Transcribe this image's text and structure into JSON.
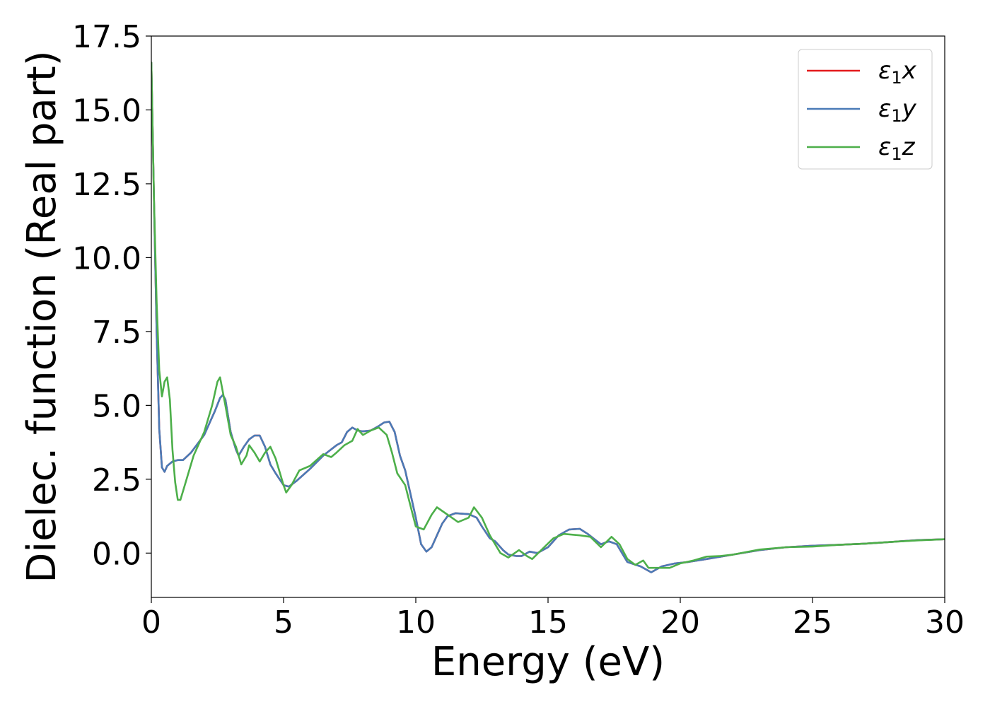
{
  "chart_data": {
    "type": "line",
    "xlabel": "Energy (eV)",
    "ylabel": "Dielec. function (Real part)",
    "xlim": [
      0,
      30
    ],
    "ylim": [
      -1.5,
      17.5
    ],
    "x_ticks": [
      "0",
      "5",
      "10",
      "15",
      "20",
      "25",
      "30"
    ],
    "y_ticks": [
      "0.0",
      "2.5",
      "5.0",
      "7.5",
      "10.0",
      "12.5",
      "15.0",
      "17.5"
    ],
    "x_tick_values": [
      0,
      5,
      10,
      15,
      20,
      25,
      30
    ],
    "y_tick_values": [
      0,
      2.5,
      5,
      7.5,
      10,
      12.5,
      15,
      17.5
    ],
    "grid": false,
    "legend_position": "top-right",
    "series": [
      {
        "name": "ε₁x",
        "legend_base": "ε",
        "legend_sub": "1",
        "legend_var": "x",
        "color": "#e41a1c",
        "points": [
          [
            0,
            16.6
          ],
          [
            0.1,
            12
          ],
          [
            0.2,
            7.5
          ],
          [
            0.3,
            4.2
          ],
          [
            0.4,
            2.9
          ],
          [
            0.5,
            2.75
          ],
          [
            0.6,
            2.95
          ],
          [
            0.8,
            3.1
          ],
          [
            1.0,
            3.15
          ],
          [
            1.2,
            3.15
          ],
          [
            1.5,
            3.4
          ],
          [
            2.0,
            4.0
          ],
          [
            2.2,
            4.4
          ],
          [
            2.4,
            4.8
          ],
          [
            2.6,
            5.25
          ],
          [
            2.7,
            5.35
          ],
          [
            2.8,
            5.2
          ],
          [
            3.0,
            4.1
          ],
          [
            3.2,
            3.5
          ],
          [
            3.3,
            3.3
          ],
          [
            3.5,
            3.6
          ],
          [
            3.7,
            3.85
          ],
          [
            3.9,
            3.98
          ],
          [
            4.1,
            3.98
          ],
          [
            4.3,
            3.6
          ],
          [
            4.5,
            3.0
          ],
          [
            4.7,
            2.7
          ],
          [
            5.0,
            2.3
          ],
          [
            5.2,
            2.25
          ],
          [
            5.5,
            2.45
          ],
          [
            6.0,
            2.85
          ],
          [
            6.5,
            3.3
          ],
          [
            7.0,
            3.65
          ],
          [
            7.2,
            3.75
          ],
          [
            7.4,
            4.1
          ],
          [
            7.6,
            4.25
          ],
          [
            7.8,
            4.15
          ],
          [
            8.0,
            4.12
          ],
          [
            8.3,
            4.15
          ],
          [
            8.6,
            4.3
          ],
          [
            8.8,
            4.42
          ],
          [
            9.0,
            4.45
          ],
          [
            9.2,
            4.1
          ],
          [
            9.4,
            3.3
          ],
          [
            9.6,
            2.8
          ],
          [
            9.8,
            2.0
          ],
          [
            10.0,
            1.2
          ],
          [
            10.2,
            0.3
          ],
          [
            10.4,
            0.05
          ],
          [
            10.6,
            0.2
          ],
          [
            10.8,
            0.6
          ],
          [
            11.0,
            1.0
          ],
          [
            11.2,
            1.25
          ],
          [
            11.5,
            1.35
          ],
          [
            12.0,
            1.32
          ],
          [
            12.3,
            1.2
          ],
          [
            12.5,
            0.9
          ],
          [
            12.8,
            0.5
          ],
          [
            13.0,
            0.4
          ],
          [
            13.3,
            0.1
          ],
          [
            13.5,
            -0.05
          ],
          [
            13.8,
            -0.1
          ],
          [
            14.0,
            -0.1
          ],
          [
            14.3,
            0.05
          ],
          [
            14.6,
            0.0
          ],
          [
            15.0,
            0.2
          ],
          [
            15.4,
            0.6
          ],
          [
            15.8,
            0.8
          ],
          [
            16.2,
            0.82
          ],
          [
            16.5,
            0.65
          ],
          [
            17.0,
            0.3
          ],
          [
            17.3,
            0.4
          ],
          [
            17.6,
            0.3
          ],
          [
            18.0,
            -0.3
          ],
          [
            18.5,
            -0.45
          ],
          [
            18.9,
            -0.65
          ],
          [
            19.3,
            -0.45
          ],
          [
            19.8,
            -0.35
          ],
          [
            20.3,
            -0.3
          ],
          [
            21.0,
            -0.2
          ],
          [
            22.0,
            -0.05
          ],
          [
            23.0,
            0.1
          ],
          [
            24.0,
            0.2
          ],
          [
            25.0,
            0.25
          ],
          [
            26.0,
            0.28
          ],
          [
            27.0,
            0.32
          ],
          [
            28.0,
            0.38
          ],
          [
            29.0,
            0.44
          ],
          [
            30.0,
            0.47
          ]
        ]
      },
      {
        "name": "ε₁y",
        "legend_base": "ε",
        "legend_sub": "1",
        "legend_var": "y",
        "color": "#4a7bb7",
        "points": [
          [
            0,
            16.6
          ],
          [
            0.1,
            12
          ],
          [
            0.2,
            7.5
          ],
          [
            0.3,
            4.2
          ],
          [
            0.4,
            2.9
          ],
          [
            0.5,
            2.75
          ],
          [
            0.6,
            2.95
          ],
          [
            0.8,
            3.1
          ],
          [
            1.0,
            3.15
          ],
          [
            1.2,
            3.15
          ],
          [
            1.5,
            3.4
          ],
          [
            2.0,
            4.0
          ],
          [
            2.2,
            4.4
          ],
          [
            2.4,
            4.8
          ],
          [
            2.6,
            5.25
          ],
          [
            2.7,
            5.35
          ],
          [
            2.8,
            5.2
          ],
          [
            3.0,
            4.1
          ],
          [
            3.2,
            3.5
          ],
          [
            3.3,
            3.3
          ],
          [
            3.5,
            3.6
          ],
          [
            3.7,
            3.85
          ],
          [
            3.9,
            3.98
          ],
          [
            4.1,
            3.98
          ],
          [
            4.3,
            3.6
          ],
          [
            4.5,
            3.0
          ],
          [
            4.7,
            2.7
          ],
          [
            5.0,
            2.3
          ],
          [
            5.2,
            2.25
          ],
          [
            5.5,
            2.45
          ],
          [
            6.0,
            2.85
          ],
          [
            6.5,
            3.3
          ],
          [
            7.0,
            3.65
          ],
          [
            7.2,
            3.75
          ],
          [
            7.4,
            4.1
          ],
          [
            7.6,
            4.25
          ],
          [
            7.8,
            4.15
          ],
          [
            8.0,
            4.12
          ],
          [
            8.3,
            4.15
          ],
          [
            8.6,
            4.3
          ],
          [
            8.8,
            4.42
          ],
          [
            9.0,
            4.45
          ],
          [
            9.2,
            4.1
          ],
          [
            9.4,
            3.3
          ],
          [
            9.6,
            2.8
          ],
          [
            9.8,
            2.0
          ],
          [
            10.0,
            1.2
          ],
          [
            10.2,
            0.3
          ],
          [
            10.4,
            0.05
          ],
          [
            10.6,
            0.2
          ],
          [
            10.8,
            0.6
          ],
          [
            11.0,
            1.0
          ],
          [
            11.2,
            1.25
          ],
          [
            11.5,
            1.35
          ],
          [
            12.0,
            1.32
          ],
          [
            12.3,
            1.2
          ],
          [
            12.5,
            0.9
          ],
          [
            12.8,
            0.5
          ],
          [
            13.0,
            0.4
          ],
          [
            13.3,
            0.1
          ],
          [
            13.5,
            -0.05
          ],
          [
            13.8,
            -0.1
          ],
          [
            14.0,
            -0.1
          ],
          [
            14.3,
            0.05
          ],
          [
            14.6,
            0.0
          ],
          [
            15.0,
            0.2
          ],
          [
            15.4,
            0.6
          ],
          [
            15.8,
            0.8
          ],
          [
            16.2,
            0.82
          ],
          [
            16.5,
            0.65
          ],
          [
            17.0,
            0.3
          ],
          [
            17.3,
            0.4
          ],
          [
            17.6,
            0.3
          ],
          [
            18.0,
            -0.3
          ],
          [
            18.5,
            -0.45
          ],
          [
            18.9,
            -0.65
          ],
          [
            19.3,
            -0.45
          ],
          [
            19.8,
            -0.35
          ],
          [
            20.3,
            -0.3
          ],
          [
            21.0,
            -0.2
          ],
          [
            22.0,
            -0.05
          ],
          [
            23.0,
            0.1
          ],
          [
            24.0,
            0.2
          ],
          [
            25.0,
            0.25
          ],
          [
            26.0,
            0.28
          ],
          [
            27.0,
            0.32
          ],
          [
            28.0,
            0.38
          ],
          [
            29.0,
            0.44
          ],
          [
            30.0,
            0.47
          ]
        ]
      },
      {
        "name": "ε₁z",
        "legend_base": "ε",
        "legend_sub": "1",
        "legend_var": "z",
        "color": "#4daf4a",
        "points": [
          [
            0,
            16.6
          ],
          [
            0.1,
            12
          ],
          [
            0.2,
            8.5
          ],
          [
            0.3,
            6.2
          ],
          [
            0.4,
            5.3
          ],
          [
            0.5,
            5.8
          ],
          [
            0.6,
            5.95
          ],
          [
            0.7,
            5.2
          ],
          [
            0.8,
            3.5
          ],
          [
            0.9,
            2.4
          ],
          [
            1.0,
            1.8
          ],
          [
            1.1,
            1.8
          ],
          [
            1.3,
            2.4
          ],
          [
            1.6,
            3.3
          ],
          [
            2.0,
            4.1
          ],
          [
            2.3,
            5.0
          ],
          [
            2.5,
            5.8
          ],
          [
            2.6,
            5.95
          ],
          [
            2.8,
            5.0
          ],
          [
            3.0,
            4.0
          ],
          [
            3.2,
            3.6
          ],
          [
            3.4,
            3.0
          ],
          [
            3.6,
            3.3
          ],
          [
            3.7,
            3.65
          ],
          [
            3.9,
            3.4
          ],
          [
            4.1,
            3.1
          ],
          [
            4.3,
            3.4
          ],
          [
            4.5,
            3.6
          ],
          [
            4.7,
            3.2
          ],
          [
            5.0,
            2.3
          ],
          [
            5.1,
            2.05
          ],
          [
            5.3,
            2.3
          ],
          [
            5.6,
            2.8
          ],
          [
            6.0,
            2.95
          ],
          [
            6.5,
            3.35
          ],
          [
            6.8,
            3.25
          ],
          [
            7.0,
            3.4
          ],
          [
            7.3,
            3.65
          ],
          [
            7.6,
            3.8
          ],
          [
            7.8,
            4.2
          ],
          [
            8.0,
            4.0
          ],
          [
            8.3,
            4.15
          ],
          [
            8.6,
            4.25
          ],
          [
            8.9,
            4.0
          ],
          [
            9.1,
            3.4
          ],
          [
            9.3,
            2.7
          ],
          [
            9.6,
            2.3
          ],
          [
            9.8,
            1.6
          ],
          [
            10.0,
            0.9
          ],
          [
            10.3,
            0.8
          ],
          [
            10.6,
            1.3
          ],
          [
            10.8,
            1.55
          ],
          [
            11.2,
            1.3
          ],
          [
            11.6,
            1.05
          ],
          [
            12.0,
            1.2
          ],
          [
            12.2,
            1.55
          ],
          [
            12.5,
            1.2
          ],
          [
            12.8,
            0.6
          ],
          [
            13.2,
            0.0
          ],
          [
            13.5,
            -0.15
          ],
          [
            13.9,
            0.1
          ],
          [
            14.2,
            -0.1
          ],
          [
            14.4,
            -0.2
          ],
          [
            14.8,
            0.15
          ],
          [
            15.2,
            0.5
          ],
          [
            15.6,
            0.65
          ],
          [
            16.2,
            0.6
          ],
          [
            16.6,
            0.55
          ],
          [
            17.0,
            0.2
          ],
          [
            17.4,
            0.55
          ],
          [
            17.7,
            0.3
          ],
          [
            18.0,
            -0.2
          ],
          [
            18.3,
            -0.4
          ],
          [
            18.6,
            -0.25
          ],
          [
            18.8,
            -0.5
          ],
          [
            19.2,
            -0.5
          ],
          [
            19.6,
            -0.5
          ],
          [
            20.0,
            -0.35
          ],
          [
            20.5,
            -0.25
          ],
          [
            21.0,
            -0.12
          ],
          [
            21.5,
            -0.1
          ],
          [
            22.0,
            -0.05
          ],
          [
            23.0,
            0.12
          ],
          [
            24.0,
            0.2
          ],
          [
            25.0,
            0.22
          ],
          [
            26.0,
            0.28
          ],
          [
            27.0,
            0.32
          ],
          [
            28.0,
            0.38
          ],
          [
            29.0,
            0.43
          ],
          [
            30.0,
            0.47
          ]
        ]
      }
    ]
  }
}
